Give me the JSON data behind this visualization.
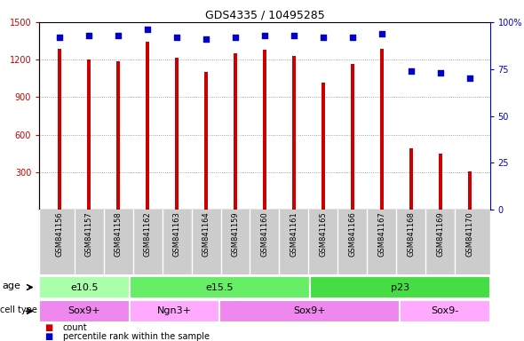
{
  "title": "GDS4335 / 10495285",
  "samples": [
    "GSM841156",
    "GSM841157",
    "GSM841158",
    "GSM841162",
    "GSM841163",
    "GSM841164",
    "GSM841159",
    "GSM841160",
    "GSM841161",
    "GSM841165",
    "GSM841166",
    "GSM841167",
    "GSM841168",
    "GSM841169",
    "GSM841170"
  ],
  "counts": [
    1290,
    1200,
    1190,
    1340,
    1215,
    1100,
    1250,
    1280,
    1230,
    1020,
    1165,
    1290,
    490,
    450,
    310
  ],
  "percentiles": [
    92,
    93,
    93,
    96,
    92,
    91,
    92,
    93,
    93,
    92,
    92,
    94,
    74,
    73,
    70
  ],
  "ylim_left": [
    0,
    1500
  ],
  "ylim_right": [
    0,
    100
  ],
  "yticks_left": [
    300,
    600,
    900,
    1200,
    1500
  ],
  "yticks_right": [
    0,
    25,
    50,
    75,
    100
  ],
  "bar_color": "#cc0000",
  "dot_color": "#0000cc",
  "grid_color": "#888888",
  "age_groups": [
    {
      "label": "e10.5",
      "start": 0,
      "end": 3,
      "color": "#aaffaa"
    },
    {
      "label": "e15.5",
      "start": 3,
      "end": 9,
      "color": "#66ee66"
    },
    {
      "label": "p23",
      "start": 9,
      "end": 15,
      "color": "#44dd44"
    }
  ],
  "cell_type_groups": [
    {
      "label": "Sox9+",
      "start": 0,
      "end": 3,
      "color": "#ee88ee"
    },
    {
      "label": "Ngn3+",
      "start": 3,
      "end": 6,
      "color": "#ffaaff"
    },
    {
      "label": "Sox9+",
      "start": 6,
      "end": 12,
      "color": "#ee88ee"
    },
    {
      "label": "Sox9-",
      "start": 12,
      "end": 15,
      "color": "#ffaaff"
    }
  ],
  "xlabel_bg_color": "#cccccc",
  "age_row_label": "age",
  "cell_type_row_label": "cell type",
  "legend_count_color": "#cc0000",
  "legend_dot_color": "#0000cc",
  "bar_width": 0.12
}
